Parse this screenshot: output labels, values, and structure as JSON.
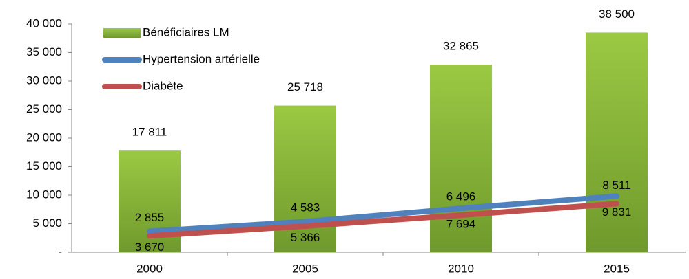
{
  "chart_data": {
    "type": "bar",
    "categories": [
      "2000",
      "2005",
      "2010",
      "2015"
    ],
    "ylim": [
      0,
      40000
    ],
    "yticks": [
      {
        "value": 0,
        "label": "-"
      },
      {
        "value": 5000,
        "label": "5 000"
      },
      {
        "value": 10000,
        "label": "10 000"
      },
      {
        "value": 15000,
        "label": "15 000"
      },
      {
        "value": 20000,
        "label": "20 000"
      },
      {
        "value": 25000,
        "label": "25 000"
      },
      {
        "value": 30000,
        "label": "30 000"
      },
      {
        "value": 35000,
        "label": "35 000"
      },
      {
        "value": 40000,
        "label": "40 000"
      }
    ],
    "series": [
      {
        "name": "Bénéficiaires LM",
        "type": "bar",
        "color": "#8cb93a",
        "values": [
          17811,
          25718,
          32865,
          38500
        ],
        "value_labels": [
          "17 811",
          "25 718",
          "32 865",
          "38 500"
        ]
      },
      {
        "name": "Hypertension artérielle",
        "type": "line",
        "color": "#4f81bd",
        "values": [
          3670,
          5366,
          7694,
          9831
        ],
        "value_labels": [
          "3 670",
          "5 366",
          "7 694",
          "9 831"
        ]
      },
      {
        "name": "Diabète",
        "type": "line",
        "color": "#c0504d",
        "values": [
          2855,
          4583,
          6496,
          8511
        ],
        "value_labels": [
          "2 855",
          "4 583",
          "6 496",
          "8 511"
        ]
      }
    ]
  }
}
